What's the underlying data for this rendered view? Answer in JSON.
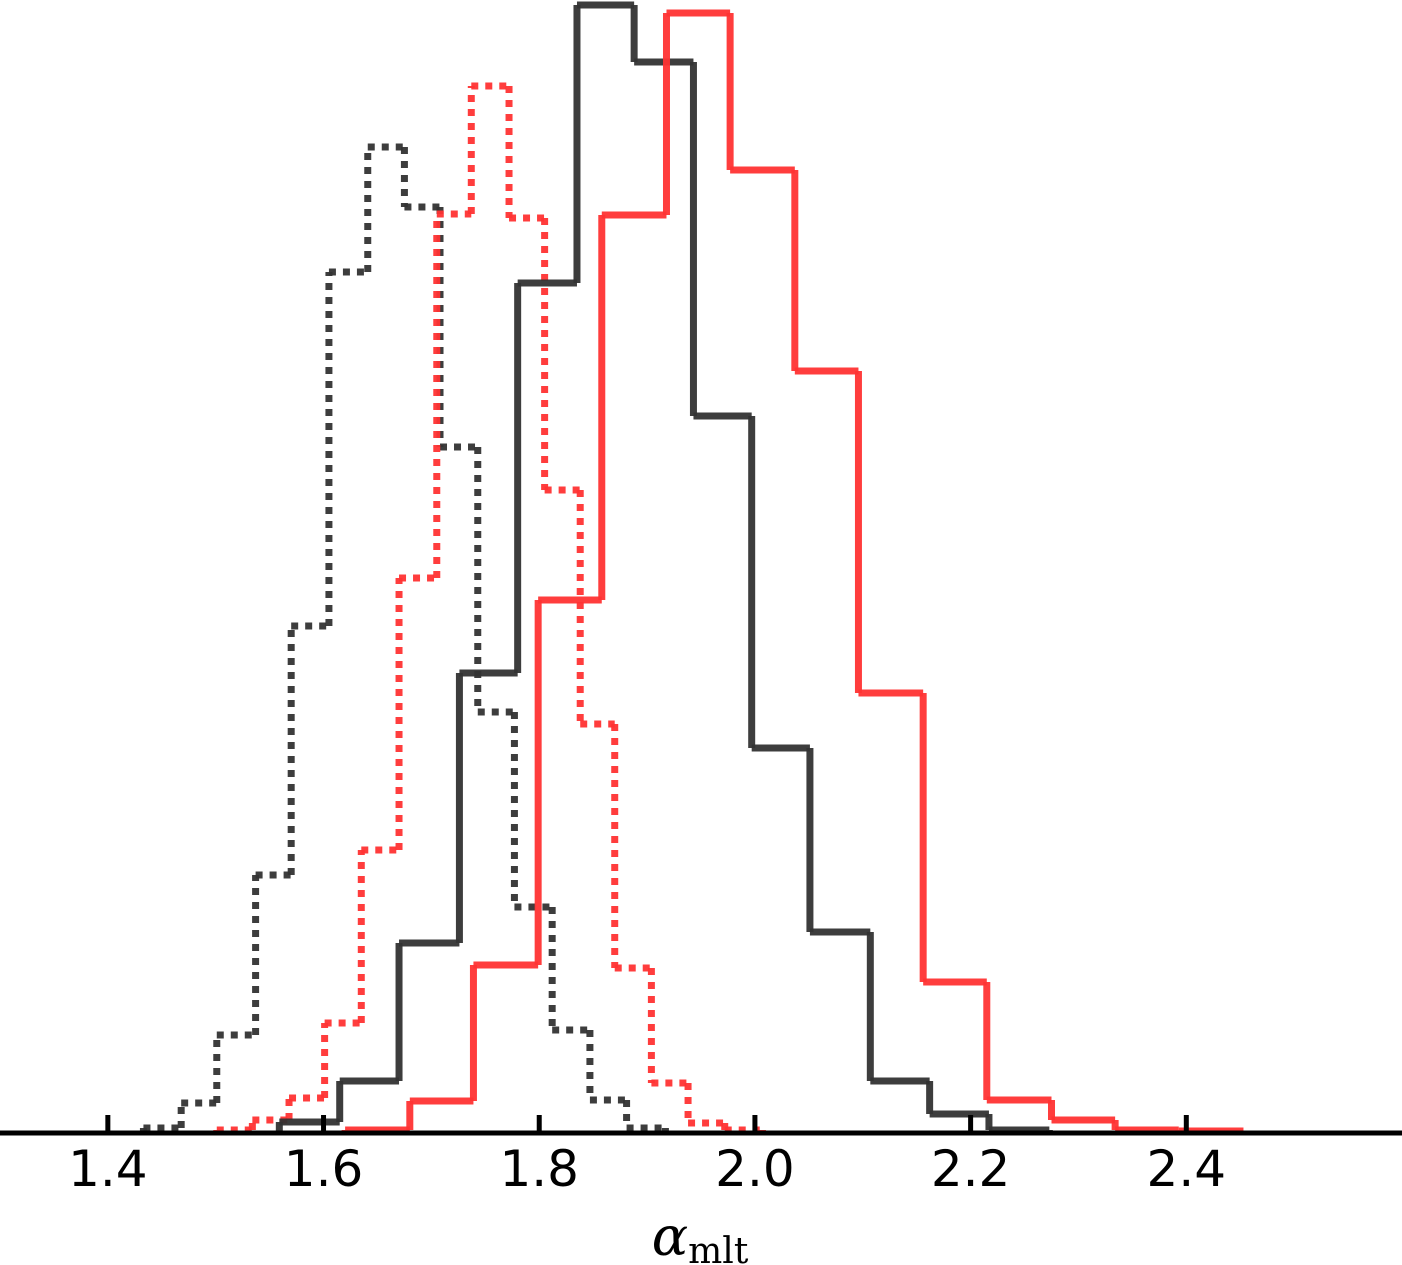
{
  "chart_data": {
    "type": "histogram",
    "xlabel": {
      "base": "α",
      "sub": "mlt"
    },
    "xlim": [
      1.3,
      2.6
    ],
    "ylim": [
      0,
      113.3
    ],
    "xticks": [
      1.4,
      1.6,
      1.8,
      {
        "value": 2,
        "label": "2.0"
      },
      2.2,
      2.4
    ],
    "series": [
      {
        "color": "#333333",
        "linestyle": "dotted",
        "bins": [
          1.433,
          1.468,
          1.501,
          1.537,
          1.57,
          1.605,
          1.641,
          1.675,
          1.708,
          1.743,
          1.777,
          1.812,
          1.847,
          1.881,
          1.917
        ],
        "values": [
          0.5,
          3.0,
          9.8,
          25.8,
          50.7,
          86.1,
          98.6,
          92.6,
          68.6,
          42.1,
          22.6,
          10.3,
          3.3,
          0.5
        ]
      },
      {
        "color": "#ff3333",
        "linestyle": "dotted",
        "bins": [
          1.501,
          1.534,
          1.568,
          1.601,
          1.635,
          1.67,
          1.705,
          1.737,
          1.772,
          1.805,
          1.838,
          1.87,
          1.904,
          1.938,
          1.972,
          2.007
        ],
        "values": [
          0.3,
          1.3,
          3.5,
          11.0,
          28.3,
          55.5,
          91.9,
          104.7,
          91.5,
          64.3,
          40.9,
          16.5,
          5.0,
          1.0,
          0.3
        ]
      },
      {
        "color": "#333333",
        "linestyle": "solid",
        "bins": [
          1.559,
          1.615,
          1.67,
          1.726,
          1.78,
          1.835,
          1.888,
          1.943,
          1.997,
          2.051,
          2.107,
          2.162,
          2.217,
          2.273
        ],
        "values": [
          1.1,
          5.2,
          19.0,
          46.0,
          85.0,
          112.8,
          107.1,
          71.7,
          38.5,
          20.1,
          5.2,
          1.9,
          0.3
        ]
      },
      {
        "color": "#ff3333",
        "linestyle": "solid",
        "bins": [
          1.62,
          1.68,
          1.739,
          1.799,
          1.858,
          1.918,
          1.977,
          2.037,
          2.096,
          2.156,
          2.215,
          2.275,
          2.334,
          2.393,
          2.453
        ],
        "values": [
          0.3,
          3.2,
          16.8,
          53.3,
          91.8,
          112.0,
          96.3,
          76.2,
          44.0,
          15.1,
          3.3,
          1.3,
          0.3,
          0.2
        ]
      }
    ]
  }
}
